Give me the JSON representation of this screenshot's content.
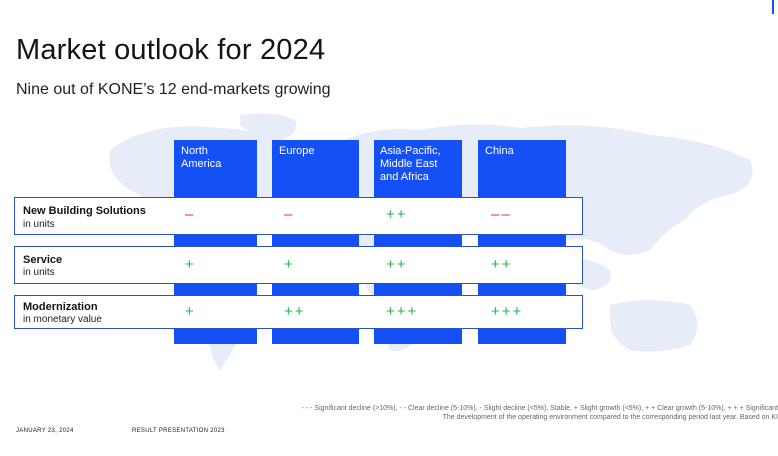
{
  "title": "Market outlook for 2024",
  "subtitle": "Nine out of KONE’s 12 end-markets growing",
  "columns": [
    "North\nAmerica",
    "Europe",
    "Asia-Pacific,\nMiddle East\nand Africa",
    "China"
  ],
  "rows": [
    {
      "title": "New Building Solutions",
      "unit": "in units",
      "values": [
        "–",
        "–",
        "++",
        "––"
      ]
    },
    {
      "title": "Service",
      "unit": "in units",
      "values": [
        "+",
        "+",
        "++",
        "++"
      ]
    },
    {
      "title": "Modernization",
      "unit": "in monetary value",
      "values": [
        "+",
        "++",
        "+++",
        "+++"
      ]
    }
  ],
  "legend_line1": "- - - Significant decline (>10%), - - Clear decline (5-10%), - Slight decline (<5%), Stable, + Slight growth (<5%), + + Clear growth (5-10%), + + + Significant",
  "legend_line2": "The development of the operating environment compared to the corresponding period last year. Based on KI",
  "footer_date": "JANUARY 23, 2024",
  "footer_label": "RESULT PRESENTATION 2023",
  "colors": {
    "brand_blue": "#1450f5",
    "growth_green": "#1fb84f",
    "decline_red": "#e8283c",
    "map": "#e6edf8"
  }
}
